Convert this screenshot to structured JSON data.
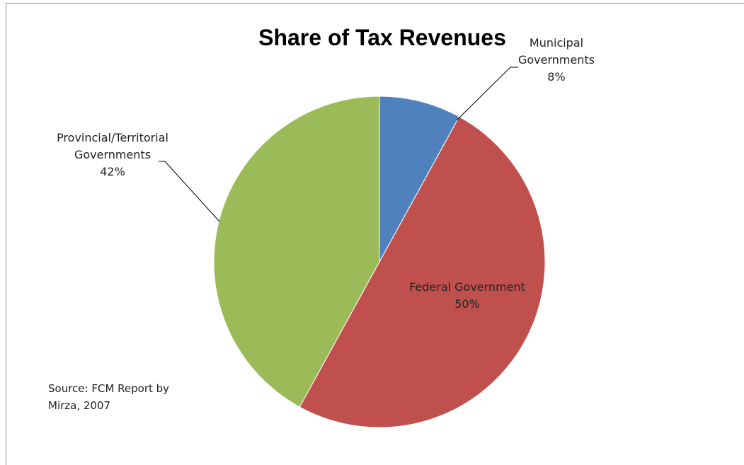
{
  "chart_data": {
    "type": "pie",
    "title": "Share of Tax Revenues",
    "slices": [
      {
        "label_lines": [
          "Municipal",
          "Governments"
        ],
        "value": 8,
        "value_text": "8%",
        "color": "#4f81bd"
      },
      {
        "label_lines": [
          "Federal Government"
        ],
        "value": 50,
        "value_text": "50%",
        "color": "#c0504d"
      },
      {
        "label_lines": [
          "Provincial/Territorial",
          "Governments"
        ],
        "value": 42,
        "value_text": "42%",
        "color": "#9bbb59"
      }
    ],
    "start_angle_deg": 0,
    "direction": "clockwise",
    "legend": "none",
    "data_labels": "category name and percentage",
    "source_lines": [
      "Source: FCM Report by",
      "Mirza, 2007"
    ]
  }
}
